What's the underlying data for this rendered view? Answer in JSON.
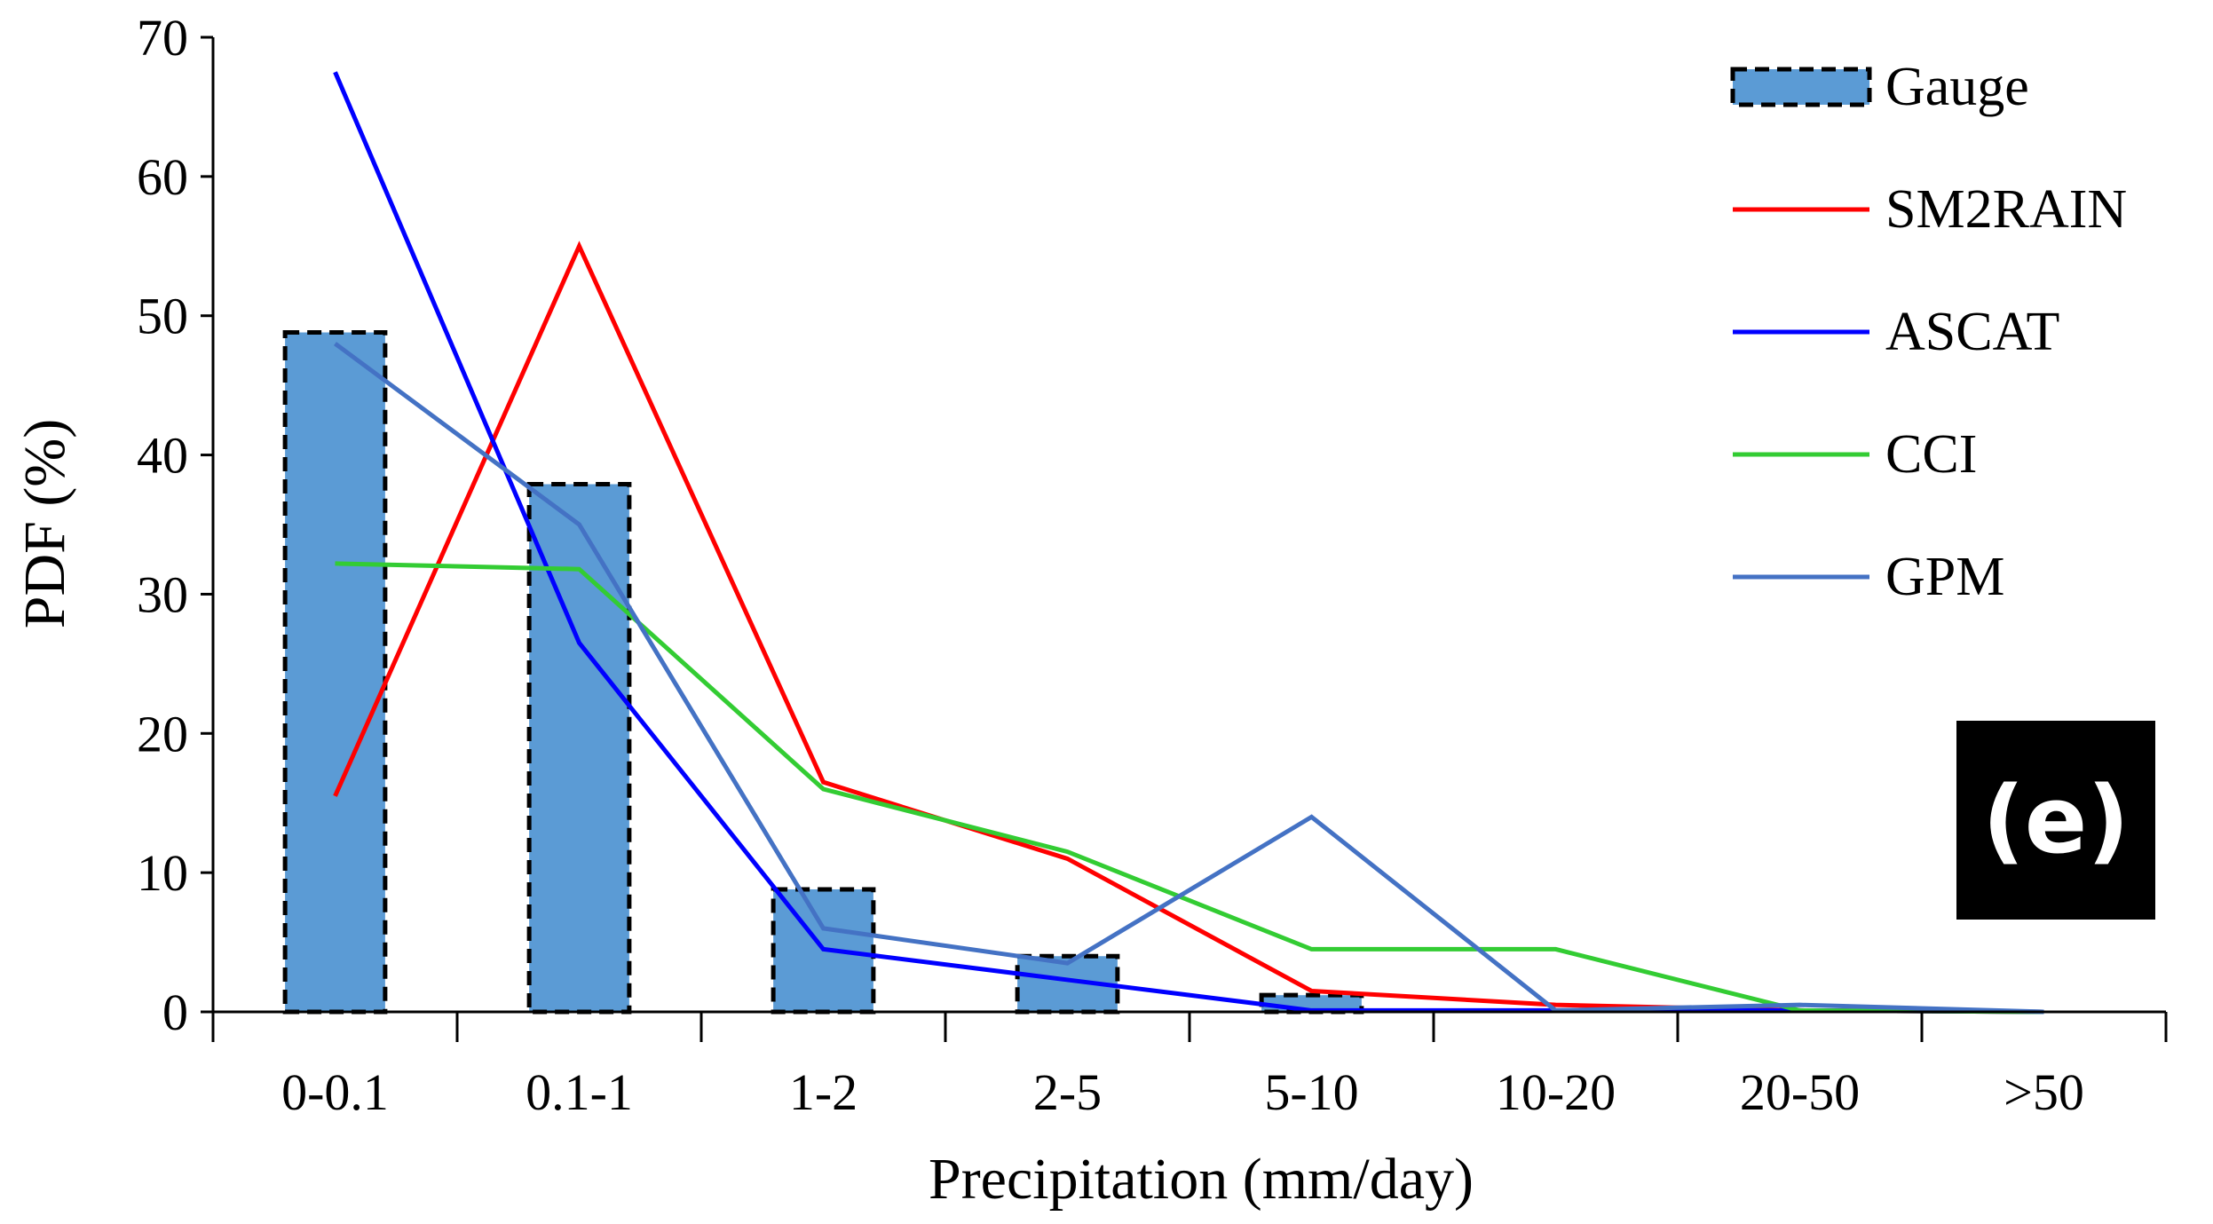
{
  "chart_data": {
    "type": "bar",
    "title": "",
    "panel_label": "(e)",
    "xlabel": "Precipitation (mm/day)",
    "ylabel": "PDF (%)",
    "ylim": [
      0,
      70
    ],
    "yticks": [
      0,
      10,
      20,
      30,
      40,
      50,
      60,
      70
    ],
    "categories": [
      "0-0.1",
      "0.1-1",
      "1-2",
      "2-5",
      "5-10",
      "10-20",
      "20-50",
      ">50"
    ],
    "bar_series": {
      "name": "Gauge",
      "color": "#5B9BD5",
      "edge_color": "#000000",
      "values": [
        48.8,
        37.9,
        8.8,
        4.0,
        1.2,
        0,
        0,
        0
      ]
    },
    "line_series": [
      {
        "name": "SM2RAIN",
        "color": "#FF0000",
        "values": [
          15.5,
          55.0,
          16.5,
          11.0,
          1.5,
          0.5,
          0.1,
          0
        ]
      },
      {
        "name": "ASCAT",
        "color": "#0000FF",
        "values": [
          67.5,
          26.5,
          4.5,
          2.3,
          0.1,
          0.1,
          0.1,
          0
        ]
      },
      {
        "name": "CCI",
        "color": "#33CC33",
        "values": [
          32.2,
          31.8,
          16.0,
          11.5,
          4.5,
          4.5,
          0.1,
          0
        ]
      },
      {
        "name": "GPM",
        "color": "#4472C4",
        "values": [
          48.0,
          35.0,
          6.0,
          3.5,
          14.0,
          0.1,
          0.5,
          0
        ]
      }
    ],
    "legend": [
      "Gauge",
      "SM2RAIN",
      "ASCAT",
      "CCI",
      "GPM"
    ],
    "legend_position": "top-right",
    "grid": false
  }
}
